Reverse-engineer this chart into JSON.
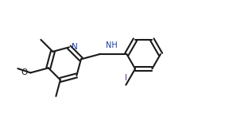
{
  "bg": "#ffffff",
  "bc": "#1a1a1a",
  "nc": "#1a3a9f",
  "ic": "#5c2d80",
  "lw": 1.5,
  "fs": 7.5,
  "dbl": 0.048,
  "xlim": [
    0.2,
    5.6
  ],
  "ylim": [
    2.0,
    4.6
  ],
  "figw": 2.88,
  "figh": 1.47,
  "dpi": 100
}
